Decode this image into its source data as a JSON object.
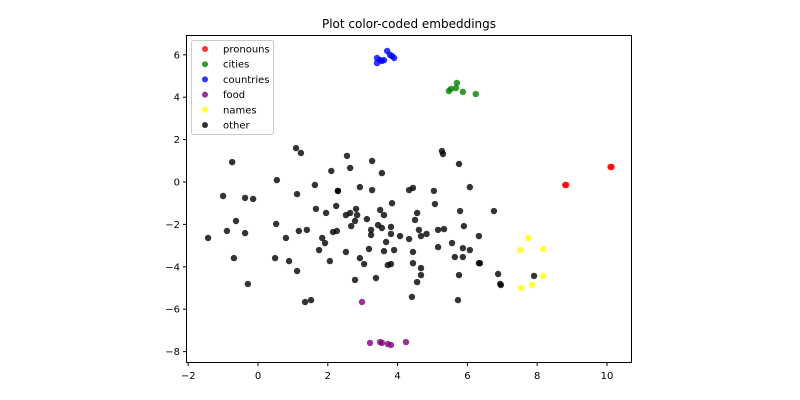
{
  "chart_data": {
    "type": "scatter",
    "title": "Plot color-coded embeddings",
    "xlabel": "",
    "ylabel": "",
    "xlim": [
      -2.1,
      10.7
    ],
    "ylim": [
      -8.5,
      6.8
    ],
    "xticks": [
      -2,
      0,
      2,
      4,
      6,
      8,
      10
    ],
    "yticks": [
      -8,
      -6,
      -4,
      -2,
      0,
      2,
      4,
      6
    ],
    "grid": false,
    "legend_position": "upper left",
    "series": [
      {
        "name": "pronouns",
        "color": "#ff0000",
        "points": [
          [
            8.8,
            -0.14
          ],
          [
            8.83,
            -0.14
          ],
          [
            10.1,
            0.71
          ],
          [
            10.13,
            0.71
          ]
        ]
      },
      {
        "name": "cities",
        "color": "#008000",
        "points": [
          [
            5.47,
            4.29
          ],
          [
            5.53,
            4.39
          ],
          [
            5.67,
            4.43
          ],
          [
            5.7,
            4.67
          ],
          [
            5.87,
            4.25
          ],
          [
            6.24,
            4.15
          ]
        ]
      },
      {
        "name": "countries",
        "color": "#0000ff",
        "points": [
          [
            3.41,
            5.61
          ],
          [
            3.41,
            5.85
          ],
          [
            3.5,
            5.75
          ],
          [
            3.55,
            5.71
          ],
          [
            3.61,
            5.75
          ],
          [
            3.7,
            6.18
          ],
          [
            3.78,
            6.0
          ],
          [
            3.84,
            5.94
          ],
          [
            3.9,
            5.85
          ]
        ]
      },
      {
        "name": "food",
        "color": "#800080",
        "points": [
          [
            2.98,
            -5.66
          ],
          [
            3.21,
            -7.59
          ],
          [
            3.5,
            -7.55
          ],
          [
            3.55,
            -7.59
          ],
          [
            3.72,
            -7.64
          ],
          [
            3.81,
            -7.69
          ],
          [
            4.24,
            -7.55
          ]
        ]
      },
      {
        "name": "names",
        "color": "#ffff00",
        "points": [
          [
            7.74,
            -2.64
          ],
          [
            7.51,
            -3.21
          ],
          [
            8.17,
            -3.16
          ],
          [
            8.17,
            -4.43
          ],
          [
            7.85,
            -4.86
          ],
          [
            7.54,
            -5.0
          ]
        ]
      },
      {
        "name": "other",
        "color": "#000000",
        "points": [
          [
            1.09,
            1.6
          ],
          [
            1.23,
            1.37
          ],
          [
            -0.74,
            0.94
          ],
          [
            2.1,
            0.52
          ],
          [
            0.54,
            0.09
          ],
          [
            1.63,
            -0.14
          ],
          [
            2.29,
            -0.42
          ],
          [
            -1.0,
            -0.66
          ],
          [
            -0.37,
            -0.75
          ],
          [
            -0.14,
            -0.8
          ],
          [
            1.12,
            -0.57
          ],
          [
            1.66,
            -1.27
          ],
          [
            1.95,
            -1.46
          ],
          [
            2.24,
            -1.13
          ],
          [
            -0.63,
            -1.84
          ],
          [
            0.52,
            -1.98
          ],
          [
            -0.89,
            -2.31
          ],
          [
            -0.37,
            -2.41
          ],
          [
            1.17,
            -2.31
          ],
          [
            1.4,
            -2.26
          ],
          [
            2.26,
            -2.31
          ],
          [
            -1.43,
            -2.64
          ],
          [
            0.8,
            -2.64
          ],
          [
            1.92,
            -2.88
          ],
          [
            1.75,
            -3.21
          ],
          [
            -0.69,
            -3.59
          ],
          [
            0.49,
            -3.59
          ],
          [
            0.89,
            -3.73
          ],
          [
            2.06,
            -3.73
          ],
          [
            1.12,
            -4.2
          ],
          [
            -0.29,
            -4.81
          ],
          [
            1.35,
            -5.66
          ],
          [
            1.52,
            -5.57
          ],
          [
            2.55,
            1.23
          ],
          [
            2.64,
            0.66
          ],
          [
            3.27,
            0.99
          ],
          [
            3.55,
            0.42
          ],
          [
            5.27,
            1.46
          ],
          [
            5.3,
            1.32
          ],
          [
            5.76,
            0.85
          ],
          [
            2.92,
            -0.24
          ],
          [
            3.27,
            -0.38
          ],
          [
            4.44,
            -0.28
          ],
          [
            4.33,
            -0.38
          ],
          [
            5.04,
            -0.42
          ],
          [
            6.07,
            -0.24
          ],
          [
            2.29,
            -0.42
          ],
          [
            3.84,
            -1.0
          ],
          [
            5.07,
            -1.04
          ],
          [
            6.76,
            -1.37
          ],
          [
            5.79,
            -1.37
          ],
          [
            2.81,
            -1.27
          ],
          [
            2.84,
            -1.56
          ],
          [
            2.52,
            -1.56
          ],
          [
            3.5,
            -1.32
          ],
          [
            3.61,
            -1.56
          ],
          [
            4.56,
            -1.46
          ],
          [
            4.5,
            -1.79
          ],
          [
            2.78,
            -1.84
          ],
          [
            3.12,
            -1.75
          ],
          [
            2.67,
            -2.08
          ],
          [
            3.44,
            -2.03
          ],
          [
            3.81,
            -2.12
          ],
          [
            3.81,
            -2.45
          ],
          [
            3.24,
            -2.26
          ],
          [
            3.55,
            -2.17
          ],
          [
            4.61,
            -2.26
          ],
          [
            5.16,
            -2.26
          ],
          [
            4.67,
            -2.55
          ],
          [
            5.33,
            -2.22
          ],
          [
            5.9,
            -2.08
          ],
          [
            2.15,
            -2.36
          ],
          [
            4.07,
            -2.55
          ],
          [
            3.67,
            -2.83
          ],
          [
            3.24,
            -2.5
          ],
          [
            4.83,
            -2.45
          ],
          [
            4.33,
            -2.69
          ],
          [
            6.33,
            -2.55
          ],
          [
            5.56,
            -2.88
          ],
          [
            5.16,
            -3.07
          ],
          [
            5.87,
            -3.12
          ],
          [
            6.07,
            -3.21
          ],
          [
            2.52,
            -3.3
          ],
          [
            3.18,
            -3.16
          ],
          [
            3.9,
            -3.21
          ],
          [
            5.87,
            -3.54
          ],
          [
            3.61,
            -3.26
          ],
          [
            4.44,
            -3.3
          ],
          [
            5.64,
            -3.54
          ],
          [
            6.36,
            -3.83
          ],
          [
            6.94,
            -4.81
          ],
          [
            2.92,
            -3.59
          ],
          [
            4.44,
            -3.83
          ],
          [
            4.67,
            -4.39
          ],
          [
            3.81,
            -3.87
          ],
          [
            3.04,
            -3.87
          ],
          [
            3.72,
            -3.92
          ],
          [
            4.67,
            -4.06
          ],
          [
            5.76,
            -4.39
          ],
          [
            6.33,
            -3.83
          ],
          [
            3.38,
            -4.53
          ],
          [
            2.78,
            -4.62
          ],
          [
            4.56,
            -4.72
          ],
          [
            6.88,
            -4.34
          ],
          [
            7.91,
            -4.43
          ],
          [
            4.41,
            -5.42
          ],
          [
            5.73,
            -5.57
          ],
          [
            6.96,
            -4.86
          ],
          [
            1.84,
            -2.64
          ],
          [
            2.64,
            -1.46
          ]
        ]
      }
    ]
  },
  "axes": {
    "x_tick_labels": [
      "−2",
      "0",
      "2",
      "4",
      "6",
      "8",
      "10"
    ],
    "y_tick_labels": [
      "−8",
      "−6",
      "−4",
      "−2",
      "0",
      "2",
      "4",
      "6"
    ]
  }
}
